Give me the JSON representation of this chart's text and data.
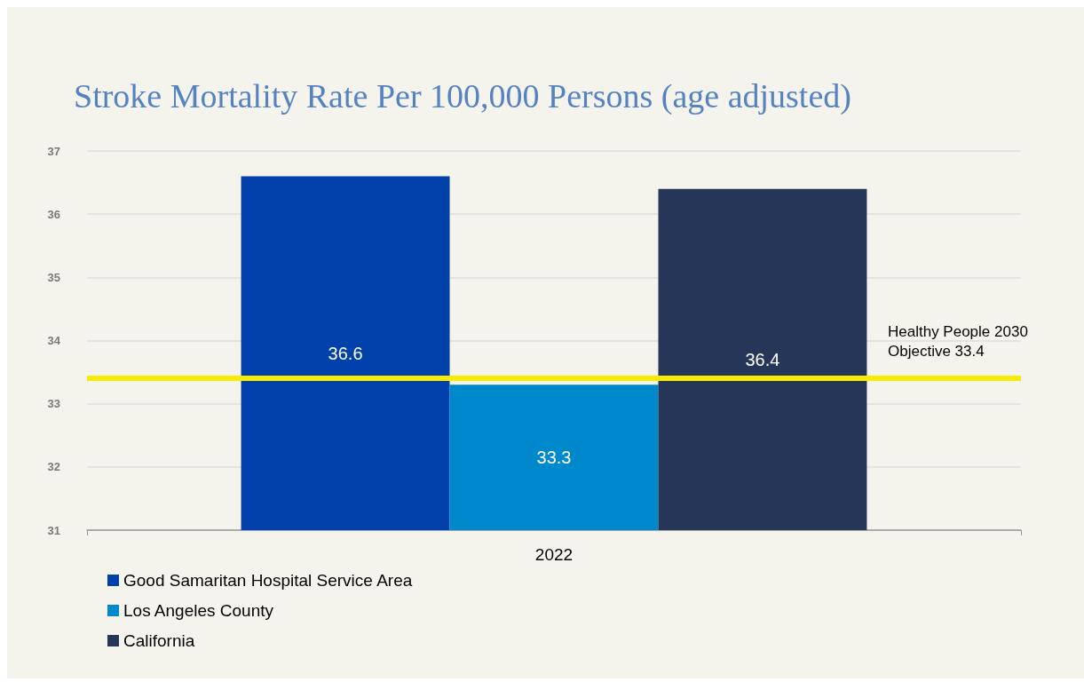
{
  "chart_data": {
    "type": "bar",
    "title": "Stroke Mortality Rate Per 100,000 Persons (age adjusted)",
    "categories": [
      "2022"
    ],
    "series": [
      {
        "name": "Good Samaritan Hospital Service Area",
        "color": "#0041ab",
        "values": [
          36.6
        ]
      },
      {
        "name": "Los Angeles County",
        "color": "#0088cc",
        "values": [
          33.3
        ]
      },
      {
        "name": "California",
        "color": "#263658",
        "values": [
          36.4
        ]
      }
    ],
    "ylim": [
      31,
      37
    ],
    "yticks": [
      31,
      32,
      33,
      34,
      35,
      36,
      37
    ],
    "ref_lines": [
      {
        "axis": "y",
        "value": 33.4,
        "label": "Healthy People 2030\nObjective 33.4",
        "color": "#f7ec00"
      }
    ],
    "data_labels": true,
    "grid": "y",
    "legend": "bottom left"
  }
}
